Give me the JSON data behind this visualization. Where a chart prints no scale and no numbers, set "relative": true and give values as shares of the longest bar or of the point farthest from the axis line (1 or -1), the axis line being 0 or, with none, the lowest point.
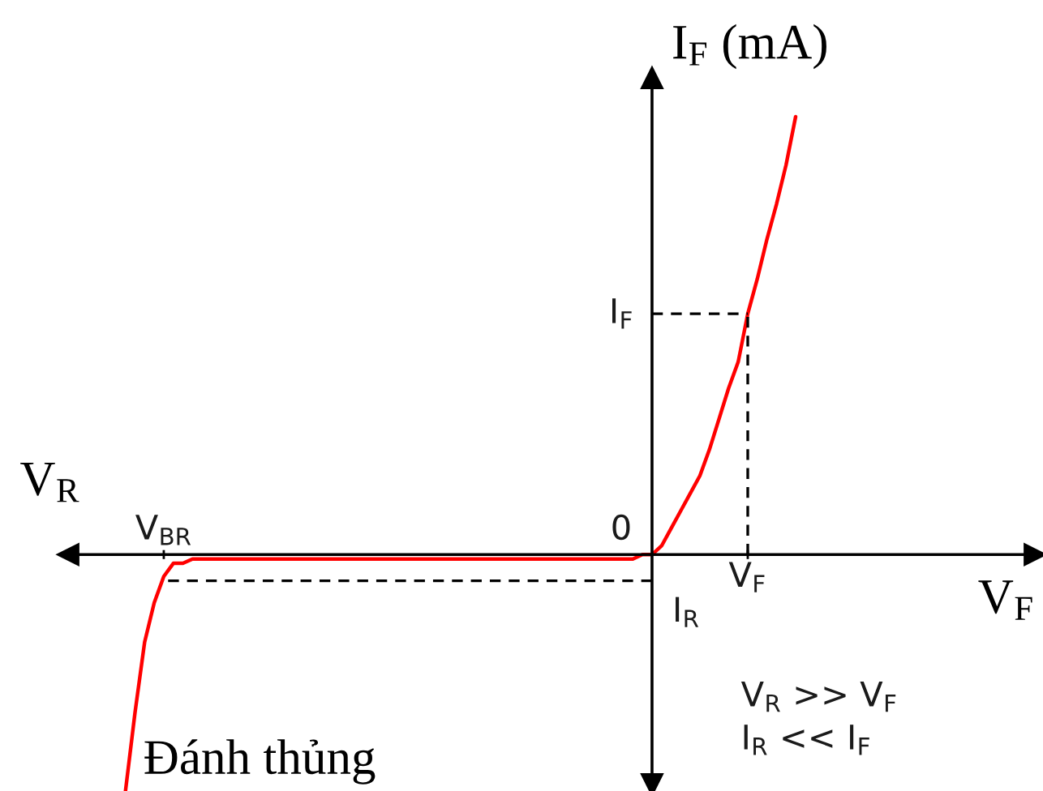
{
  "chart_data": {
    "type": "line",
    "relative": true,
    "xlabel": "V$_{F}$",
    "ylabel": "I$_{F}$ (mA)",
    "categories": [
      null,
      null,
      null,
      null,
      null,
      null,
      null,
      null,
      null,
      null,
      "V$_{BR}$",
      null,
      null,
      null,
      null,
      null,
      null,
      null,
      null,
      null,
      null,
      null,
      null,
      null,
      null,
      null,
      null,
      null,
      null,
      null,
      null,
      null,
      null,
      null,
      null,
      null,
      null,
      null,
      null,
      null,
      null,
      null,
      null,
      null,
      null,
      null,
      null,
      null,
      null,
      null,
      null,
      null,
      null,
      null,
      null,
      null,
      null,
      null,
      null,
      null,
      null,
      null,
      null,
      null,
      null,
      null,
      null,
      null,
      null,
      null,
      null,
      "V$_{F}$",
      null,
      null,
      null,
      null,
      null,
      null,
      null,
      null,
      null,
      null,
      null,
      null,
      null,
      null,
      null,
      null,
      null,
      null,
      null,
      null,
      null,
      null,
      null,
      null,
      null,
      null,
      null,
      null,
      null,
      null
    ],
    "series": [
      {
        "color": "#ff0000",
        "line_style": "solid",
        "values": [
          null,
          null,
          null,
          null,
          null,
          null,
          -0.54,
          -0.36,
          -0.2,
          -0.11,
          -0.05,
          -0.02,
          -0.02,
          -0.01,
          -0.01,
          -0.01,
          -0.01,
          -0.01,
          -0.01,
          -0.01,
          -0.01,
          -0.01,
          -0.01,
          -0.01,
          -0.01,
          -0.01,
          -0.01,
          -0.01,
          -0.01,
          -0.01,
          -0.01,
          -0.01,
          -0.01,
          -0.01,
          -0.01,
          -0.01,
          -0.01,
          -0.01,
          -0.01,
          -0.01,
          -0.01,
          -0.01,
          -0.01,
          -0.01,
          -0.01,
          -0.01,
          -0.01,
          -0.01,
          -0.01,
          -0.01,
          -0.01,
          -0.01,
          -0.01,
          -0.01,
          -0.01,
          -0.01,
          -0.01,
          -0.01,
          -0.01,
          -0.01,
          0,
          0,
          0.02,
          0.06,
          0.1,
          0.14,
          0.18,
          0.24,
          0.31,
          0.38,
          0.44,
          0.55,
          0.63,
          0.72,
          0.8,
          0.89,
          1.0,
          null,
          null,
          null,
          null,
          null,
          null,
          null,
          null,
          null,
          null,
          null,
          null,
          null,
          null,
          null,
          null,
          null,
          null,
          null,
          null,
          null,
          null,
          null,
          null,
          null
        ]
      }
    ],
    "ref_lines": [
      {
        "axis": "y",
        "value": 0.55,
        "label": "I$_{F}$",
        "color": "#000000",
        "line_style": "dashed"
      },
      {
        "axis": "y",
        "value": -0.06,
        "label": "I$_{R}$",
        "color": "#000000",
        "line_style": "dashed"
      },
      {
        "axis": "x",
        "value": "V$_{F}$",
        "color": "#000000",
        "line_style": "dashed"
      }
    ],
    "annotations": [
      "V$_{R}$",
      "0",
      "Đánh thủng",
      "V$_{R}$ >> V$_{F}$",
      "I$_{R}$ << I$_{F}$"
    ]
  }
}
